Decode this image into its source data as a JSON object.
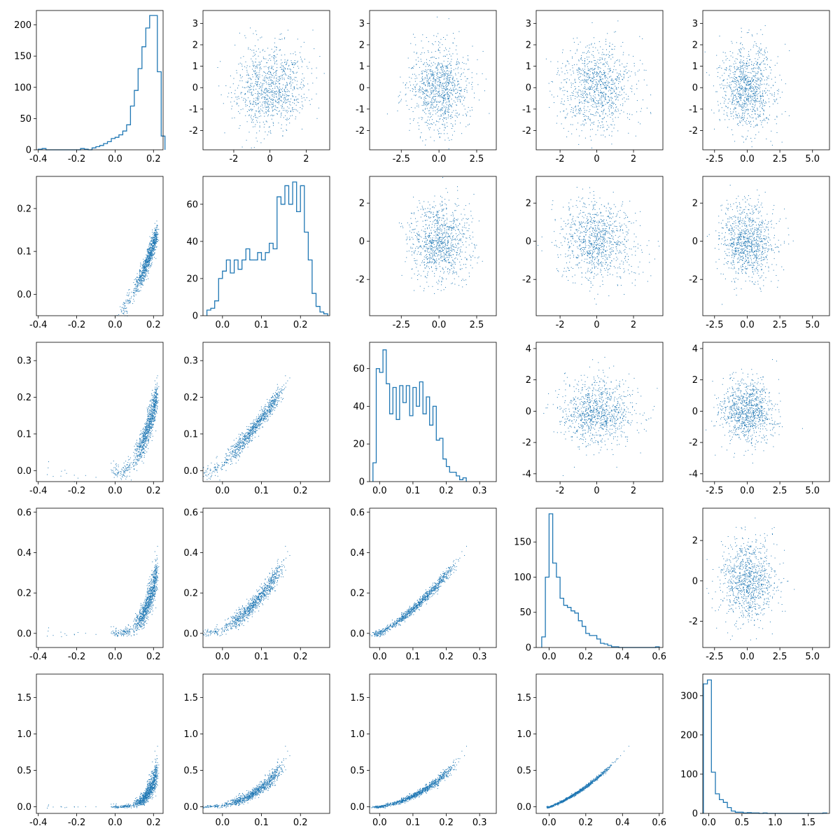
{
  "figure": {
    "type": "pair-plot",
    "color": "#1f77b4",
    "grid": false,
    "legend": "none"
  },
  "chart_data": {
    "type": "scatter",
    "layout": "5x5 pair plot: histograms on the diagonal, scatter plots off the diagonal",
    "variables": [
      {
        "key": "v1",
        "range": [
          -0.41,
          0.25
        ],
        "ticks": [
          "-0.4",
          "-0.2",
          "0.0",
          "0.2"
        ],
        "tick_values": [
          -0.4,
          -0.2,
          0.0,
          0.2
        ]
      },
      {
        "key": "v2",
        "range": [
          -0.05,
          0.275
        ],
        "ticks": [
          "0.0",
          "0.1",
          "0.2"
        ],
        "tick_values": [
          0.0,
          0.1,
          0.2
        ]
      },
      {
        "key": "v3",
        "range": [
          -0.03,
          0.35
        ],
        "ticks": [
          "0.0",
          "0.1",
          "0.2",
          "0.3"
        ],
        "tick_values": [
          0.0,
          0.1,
          0.2,
          0.3
        ]
      },
      {
        "key": "v4",
        "range": [
          -0.07,
          0.62
        ],
        "ticks": [
          "0.0",
          "0.2",
          "0.4",
          "0.6"
        ],
        "tick_values": [
          0.0,
          0.2,
          0.4,
          0.6
        ]
      },
      {
        "key": "v5",
        "range": [
          -0.09,
          1.82
        ],
        "ticks": [
          "0.0",
          "0.5",
          "1.0",
          "1.5"
        ],
        "tick_values": [
          0.0,
          0.5,
          1.0,
          1.5
        ]
      }
    ],
    "histograms": [
      {
        "variable": "v1",
        "bin_start": -0.4,
        "bin_width": 0.02,
        "counts": [
          1,
          2,
          0,
          0,
          0,
          0,
          0,
          0,
          0,
          0,
          0,
          2,
          1,
          0,
          3,
          5,
          7,
          10,
          13,
          18,
          20,
          24,
          30,
          40,
          70,
          95,
          130,
          165,
          195,
          215,
          215,
          125,
          22
        ],
        "ylim": [
          0,
          223
        ],
        "yticks": [
          "0",
          "50",
          "100",
          "150",
          "200"
        ],
        "ytick_values": [
          0,
          50,
          100,
          150,
          200
        ]
      },
      {
        "variable": "v2",
        "bin_start": -0.04,
        "bin_width": 0.01,
        "counts": [
          3,
          4,
          8,
          20,
          24,
          30,
          23,
          30,
          25,
          30,
          36,
          30,
          30,
          34,
          30,
          34,
          39,
          36,
          64,
          60,
          70,
          60,
          72,
          56,
          70,
          45,
          30,
          12,
          5,
          2,
          1
        ],
        "ylim": [
          0,
          75
        ],
        "yticks": [
          "0",
          "20",
          "40",
          "60"
        ],
        "ytick_values": [
          0,
          20,
          40,
          60
        ]
      },
      {
        "variable": "v3",
        "bin_start": -0.02,
        "bin_width": 0.01,
        "counts": [
          10,
          60,
          58,
          70,
          52,
          36,
          50,
          33,
          51,
          42,
          51,
          35,
          50,
          40,
          53,
          36,
          45,
          30,
          40,
          22,
          23,
          12,
          8,
          5,
          5,
          3,
          1,
          2
        ],
        "ylim": [
          0,
          74
        ],
        "yticks": [
          "0",
          "20",
          "40",
          "60"
        ],
        "ytick_values": [
          0,
          20,
          40,
          60
        ]
      },
      {
        "variable": "v4",
        "bin_start": -0.04,
        "bin_width": 0.02,
        "counts": [
          15,
          100,
          190,
          120,
          100,
          70,
          60,
          57,
          52,
          49,
          38,
          30,
          20,
          17,
          17,
          12,
          6,
          5,
          3,
          1,
          1,
          0,
          0,
          0,
          0,
          0,
          0,
          0,
          0,
          0,
          0,
          1
        ],
        "ylim": [
          0,
          198
        ],
        "yticks": [
          "0",
          "50",
          "100",
          "150"
        ],
        "ytick_values": [
          0,
          50,
          100,
          150
        ]
      },
      {
        "variable": "v5",
        "bin_start": -0.08,
        "bin_width": 0.06,
        "counts": [
          330,
          340,
          105,
          50,
          35,
          28,
          15,
          6,
          3,
          3,
          1,
          2,
          1,
          1,
          0,
          1,
          0,
          0,
          0,
          0,
          0,
          0,
          0,
          0,
          0,
          0,
          0,
          0,
          0,
          0,
          1
        ],
        "ylim": [
          0,
          355
        ],
        "yticks": [
          "0",
          "100",
          "200",
          "300"
        ],
        "ytick_values": [
          0,
          100,
          200,
          300
        ]
      }
    ],
    "upper_noise_axes": {
      "x_by_column": [
        null,
        {
          "range": [
            -3.7,
            3.3
          ],
          "ticks": [
            "-2",
            "0",
            "2"
          ],
          "tick_values": [
            -2,
            0,
            2
          ]
        },
        {
          "range": [
            -4.6,
            3.8
          ],
          "ticks": [
            "-2.5",
            "0.0",
            "2.5"
          ],
          "tick_values": [
            -2.5,
            0.0,
            2.5
          ]
        },
        {
          "range": [
            -3.3,
            3.6
          ],
          "ticks": [
            "-2",
            "0",
            "2"
          ],
          "tick_values": [
            -2,
            0,
            2
          ]
        },
        {
          "range": [
            -3.4,
            6.3
          ],
          "ticks": [
            "-2.5",
            "0.0",
            "2.5",
            "5.0"
          ],
          "tick_values": [
            -2.5,
            0.0,
            2.5,
            5.0
          ]
        }
      ],
      "y_by_row": [
        {
          "range": [
            -2.9,
            3.6
          ],
          "ticks": [
            "-2",
            "-1",
            "0",
            "1",
            "2",
            "3"
          ],
          "tick_values": [
            -2,
            -1,
            0,
            1,
            2,
            3
          ]
        },
        {
          "range": [
            -3.9,
            3.4
          ],
          "ticks": [
            "-2",
            "0",
            "2"
          ],
          "tick_values": [
            -2,
            0,
            2
          ]
        },
        {
          "range": [
            -4.5,
            4.4
          ],
          "ticks": [
            "-4",
            "-2",
            "0",
            "2",
            "4"
          ],
          "tick_values": [
            -4,
            -2,
            0,
            2,
            4
          ]
        },
        {
          "range": [
            -3.3,
            3.6
          ],
          "ticks": [
            "-2",
            "0",
            "2"
          ],
          "tick_values": [
            -2,
            0,
            2
          ]
        }
      ],
      "distribution": "standard normal noise, about 1000 points per panel"
    },
    "lower_relationship": "each lower-triangle panel plots a variable against an earlier one; points follow a rising, convex curve"
  }
}
